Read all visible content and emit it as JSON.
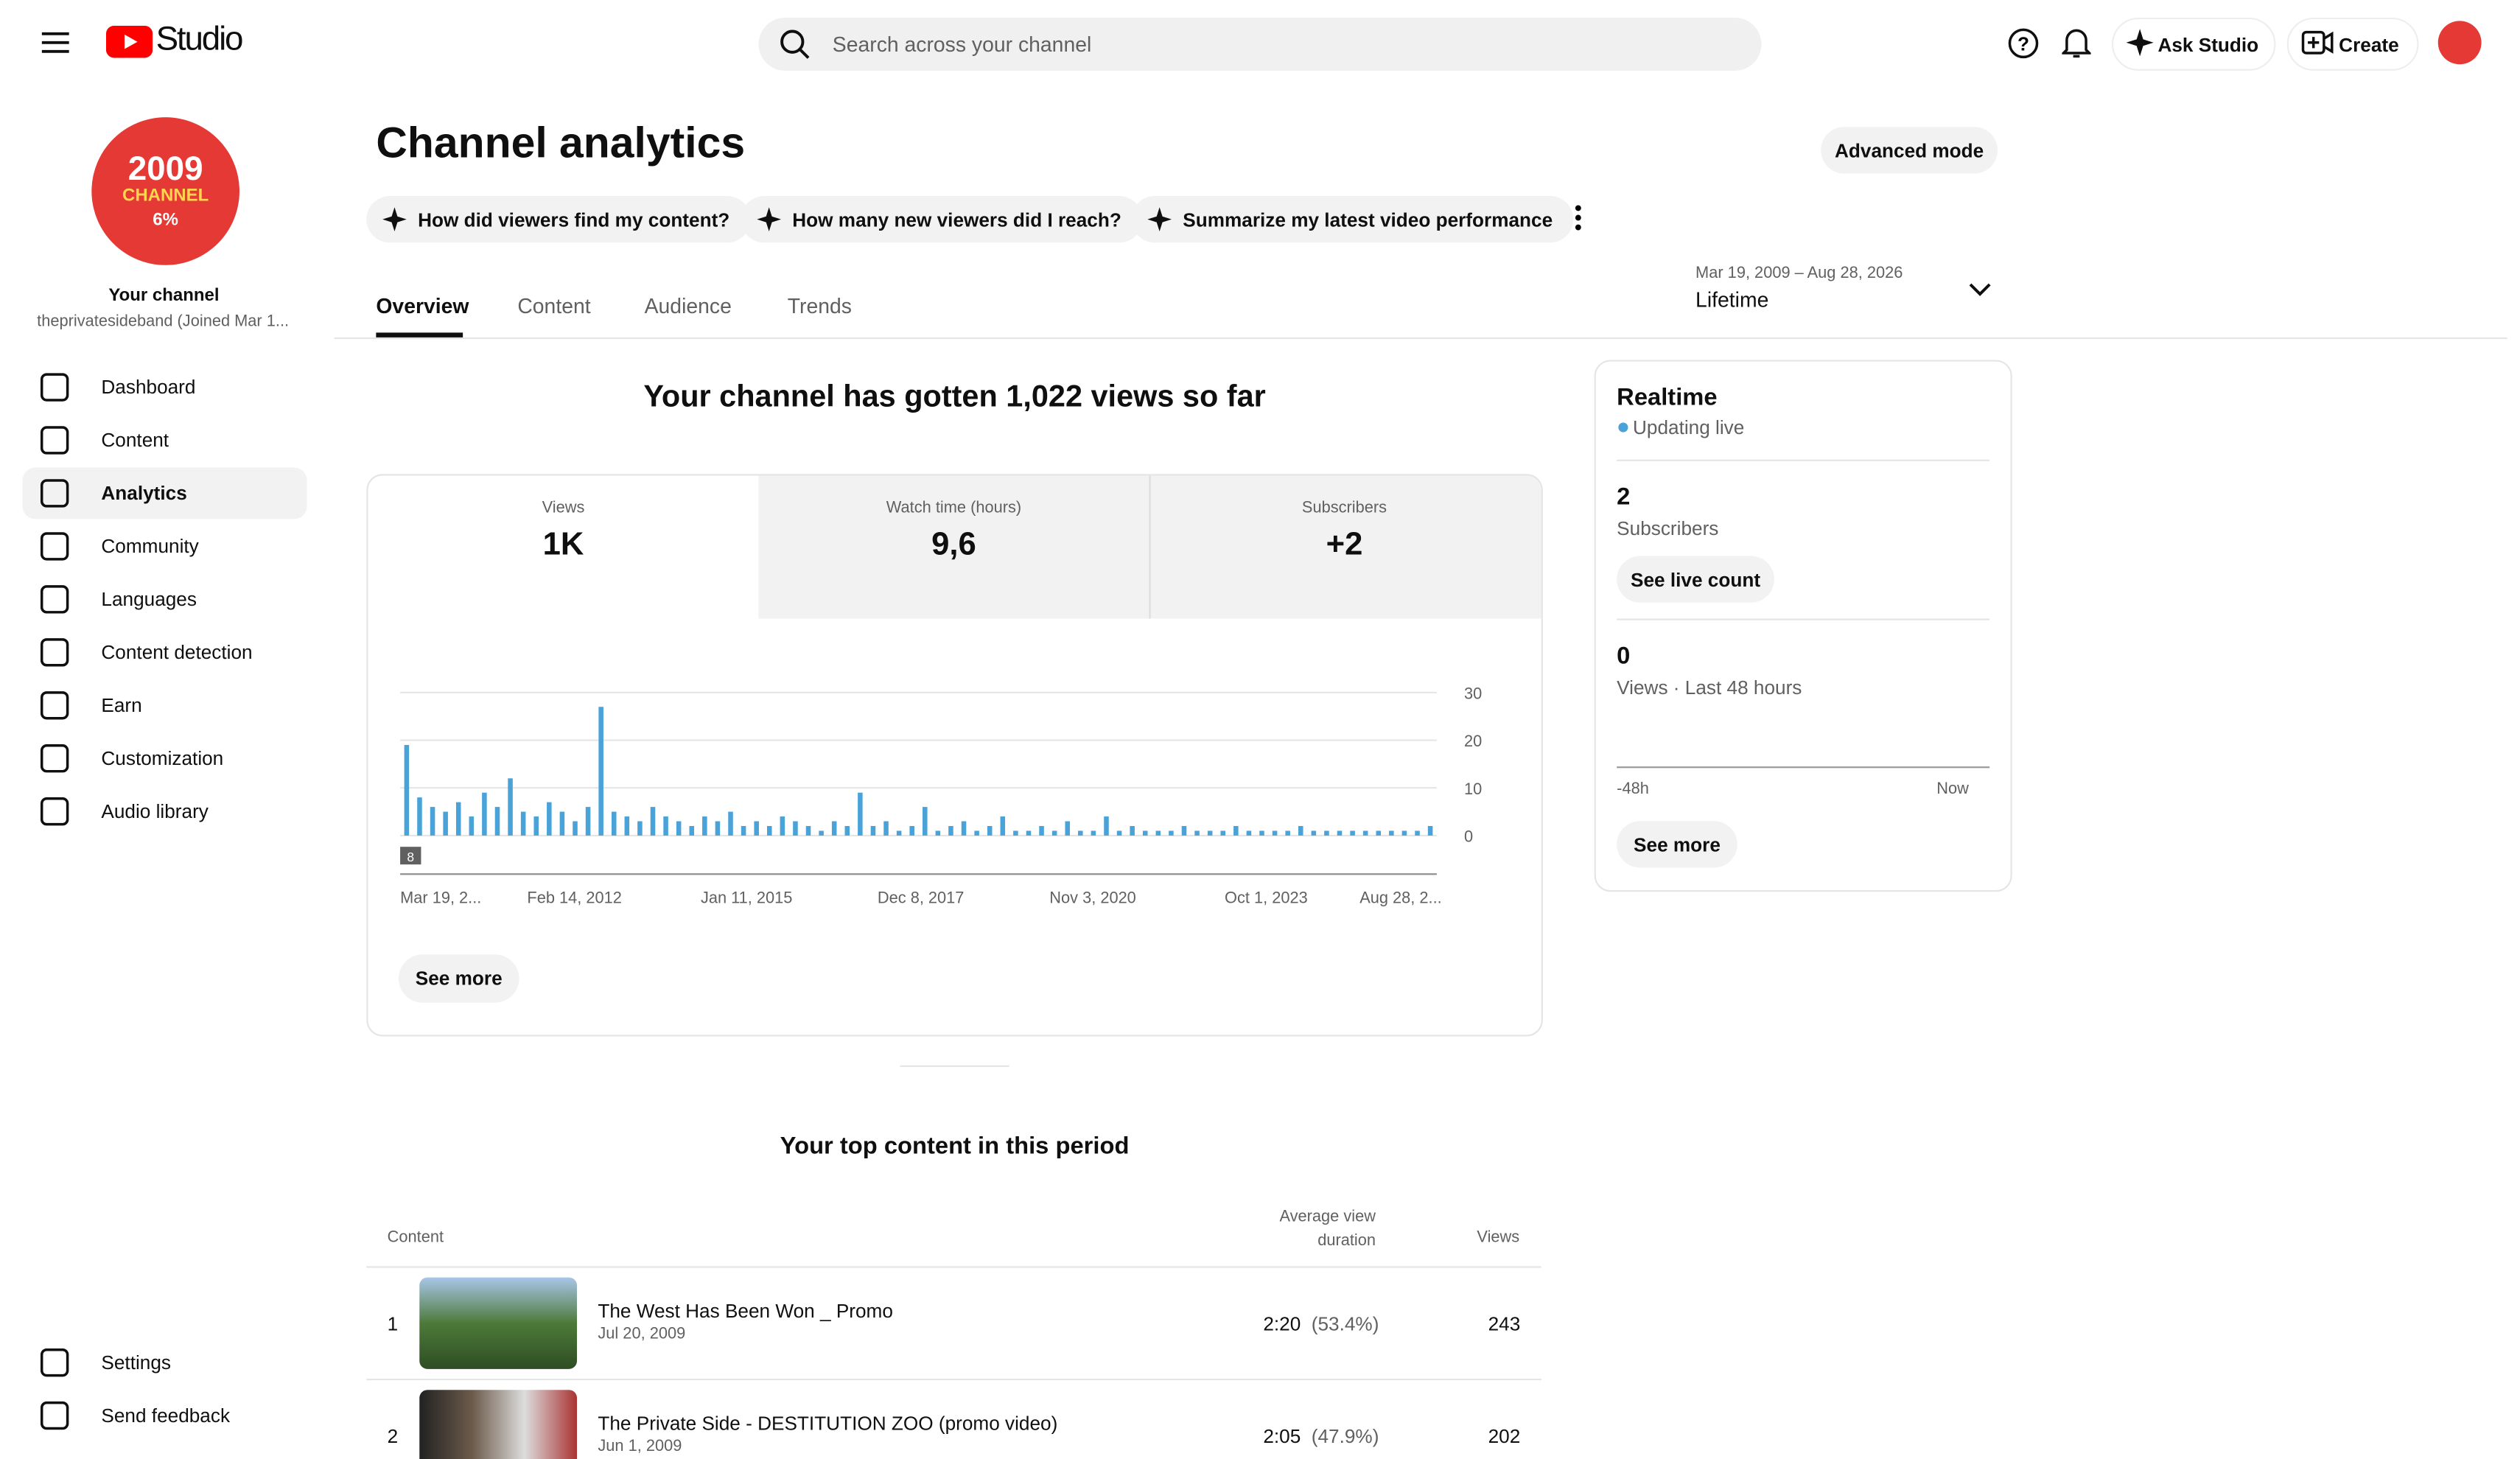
{
  "header": {
    "logo": "Studio",
    "search": "Search across your channel",
    "ask_studio": "Ask Studio",
    "create": "Create"
  },
  "sidebar": {
    "avatar": [
      "2009",
      "CHANNEL",
      "6%"
    ],
    "channel_label": "Your channel",
    "handle": "theprivatesideband (Joined Mar 1...",
    "nav": [
      "Dashboard",
      "Content",
      "Analytics",
      "Community",
      "Languages",
      "Content detection",
      "Earn",
      "Customization",
      "Audio library"
    ],
    "footer": [
      "Settings",
      "Send feedback"
    ]
  },
  "page": {
    "title": "Channel analytics",
    "advanced_mode": "Advanced mode",
    "chips": [
      "How did viewers find my content?",
      "How many new viewers did I reach?",
      "Summarize my latest video performance"
    ],
    "tabs": [
      "Overview",
      "Content",
      "Audience",
      "Trends"
    ],
    "date_range": "Mar 19, 2009 – Aug 28, 2026",
    "period": "Lifetime"
  },
  "overview": {
    "headline": "Your channel has gotten 1,022 views so far",
    "metrics": [
      {
        "label": "Views",
        "value": "1K"
      },
      {
        "label": "Watch time (hours)",
        "value": "9,6"
      },
      {
        "label": "Subscribers",
        "value": "+2"
      }
    ],
    "see_more": "See more"
  },
  "chart_data": {
    "type": "bar",
    "color": "#4aa3d8",
    "ylim": [
      0,
      30
    ],
    "yticks": [
      0,
      10,
      20,
      30
    ],
    "grid": true,
    "annotation": "8",
    "x_labels": [
      "Mar 19, 2...",
      "Feb 14, 2012",
      "Jan 11, 2015",
      "Dec 8, 2017",
      "Nov 3, 2020",
      "Oct 1, 2023",
      "Aug 28, 2..."
    ],
    "values": [
      19,
      8,
      6,
      5,
      7,
      4,
      9,
      6,
      12,
      5,
      4,
      7,
      5,
      3,
      6,
      27,
      5,
      4,
      3,
      6,
      4,
      3,
      2,
      4,
      3,
      5,
      2,
      3,
      2,
      4,
      3,
      2,
      1,
      3,
      2,
      9,
      2,
      3,
      1,
      2,
      6,
      1,
      2,
      3,
      1,
      2,
      4,
      1,
      1,
      2,
      1,
      3,
      1,
      1,
      4,
      1,
      2,
      1,
      1,
      1,
      2,
      1,
      1,
      1,
      2,
      1,
      1,
      1,
      1,
      2,
      1,
      1,
      1,
      1,
      1,
      1,
      1,
      1,
      1,
      2
    ]
  },
  "realtime": {
    "title": "Realtime",
    "status": "Updating live",
    "subscribers": 2,
    "subscribers_label": "Subscribers",
    "see_live_count": "See live count",
    "views": 0,
    "views_label": "Views · Last 48 hours",
    "start": "-48h",
    "end": "Now",
    "see_more": "See more"
  },
  "top_content": {
    "title": "Your top content in this period",
    "columns": [
      "Content",
      "Average view duration",
      "Views"
    ],
    "rows": [
      {
        "rank": 1,
        "title": "The West Has Been Won _ Promo",
        "date": "Jul 20, 2009",
        "duration": "2:20",
        "percent": "(53.4%)",
        "views": 243
      },
      {
        "rank": 2,
        "title": "The Private Side - DESTITUTION ZOO (promo video)",
        "date": "Jun 1, 2009",
        "duration": "2:05",
        "percent": "(47.9%)",
        "views": 202
      }
    ]
  }
}
